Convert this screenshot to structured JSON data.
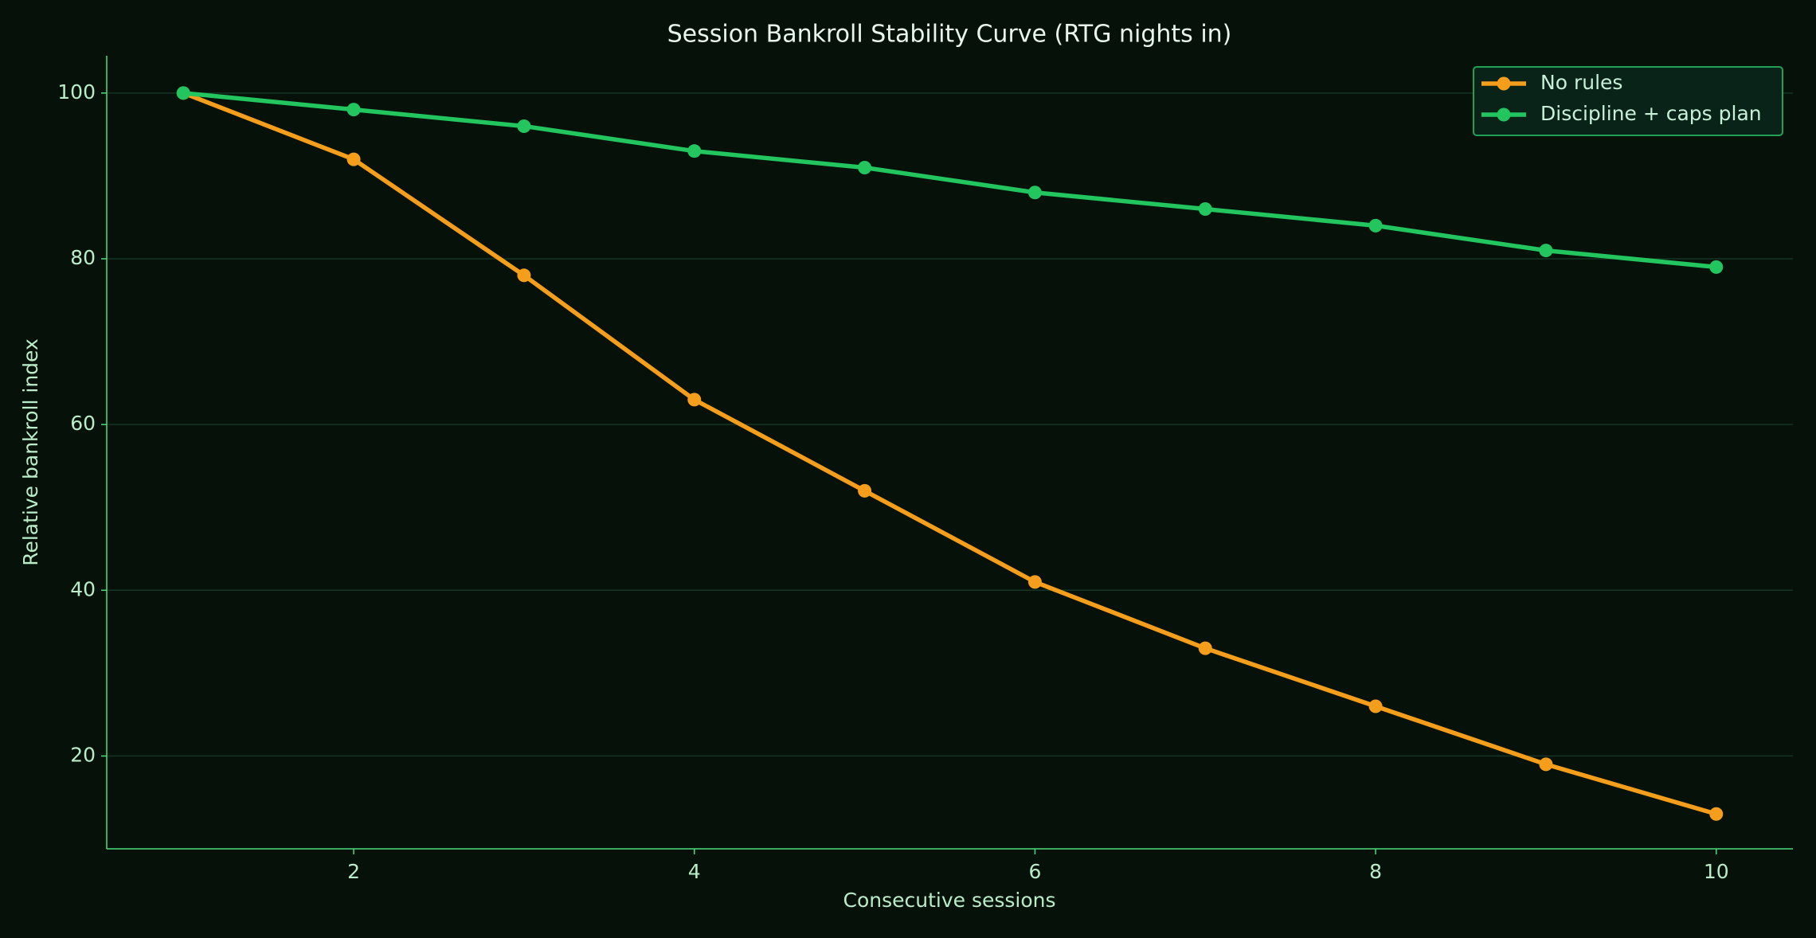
{
  "chart_data": {
    "type": "line",
    "title": "Session Bankroll Stability Curve (RTG nights in)",
    "xlabel": "Consecutive sessions",
    "ylabel": "Relative bankroll index",
    "x": [
      1,
      2,
      3,
      4,
      5,
      6,
      7,
      8,
      9,
      10
    ],
    "series": [
      {
        "name": "No rules",
        "color": "#f59e1b",
        "values": [
          100,
          92,
          78,
          63,
          52,
          41,
          33,
          26,
          19,
          13
        ]
      },
      {
        "name": "Discipline + caps plan",
        "color": "#22c55e",
        "values": [
          100,
          98,
          96,
          93,
          91,
          88,
          86,
          84,
          81,
          79
        ]
      }
    ],
    "xlim": [
      0.55,
      10.45
    ],
    "ylim": [
      8.8,
      104.5
    ],
    "xticks": [
      2,
      4,
      6,
      8,
      10
    ],
    "yticks": [
      20,
      40,
      60,
      80,
      100
    ],
    "grid": true,
    "legend": "upper right"
  }
}
